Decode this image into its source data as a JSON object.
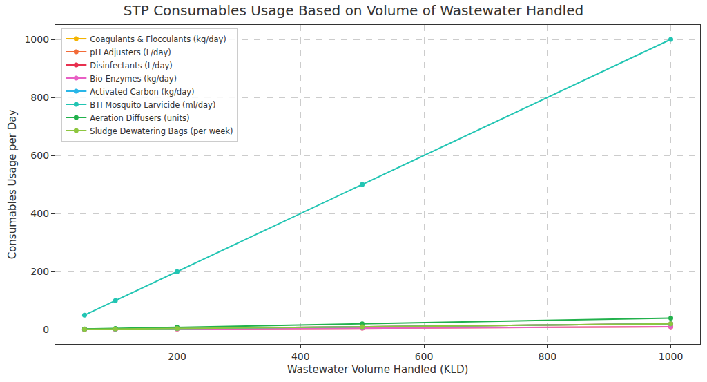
{
  "chart_data": {
    "type": "line",
    "title": "STP Consumables Usage Based on Volume of Wastewater Handled",
    "xlabel": "Wastewater Volume Handled (KLD)",
    "ylabel": "Consumables Usage per Day",
    "x": [
      50,
      100,
      200,
      500,
      1000
    ],
    "series": [
      {
        "name": "Coagulants & Flocculants (kg/day)",
        "color": "#f4b400",
        "values": [
          1,
          2,
          4,
          10,
          20
        ]
      },
      {
        "name": "pH Adjusters (L/day)",
        "color": "#f26b38",
        "values": [
          0.5,
          1,
          2,
          5,
          10
        ]
      },
      {
        "name": "Disinfectants (L/day)",
        "color": "#e8304f",
        "values": [
          1,
          2,
          4,
          10,
          20
        ]
      },
      {
        "name": "Bio-Enzymes (kg/day)",
        "color": "#e85fc4",
        "values": [
          0.5,
          1,
          2,
          5,
          10
        ]
      },
      {
        "name": "Activated Carbon (kg/day)",
        "color": "#29b6e8",
        "values": [
          1,
          2,
          4,
          10,
          20
        ]
      },
      {
        "name": "BTI Mosquito Larvicide (ml/day)",
        "color": "#22c5b3",
        "values": [
          50,
          100,
          200,
          500,
          1000
        ]
      },
      {
        "name": "Aeration Diffusers (units)",
        "color": "#22b14c",
        "values": [
          2,
          4,
          8,
          20,
          40
        ]
      },
      {
        "name": "Sludge Dewatering Bags (per week)",
        "color": "#8dc63f",
        "values": [
          1,
          2,
          4,
          10,
          20
        ]
      }
    ],
    "xlim": [
      2.5,
      1047.5
    ],
    "ylim": [
      -49.5,
      1050
    ],
    "xticks": [
      200,
      400,
      600,
      800,
      1000
    ],
    "yticks": [
      0,
      200,
      400,
      600,
      800,
      1000
    ],
    "grid": true,
    "legend": "upper left",
    "marker": "circle",
    "line_style": "solid"
  }
}
